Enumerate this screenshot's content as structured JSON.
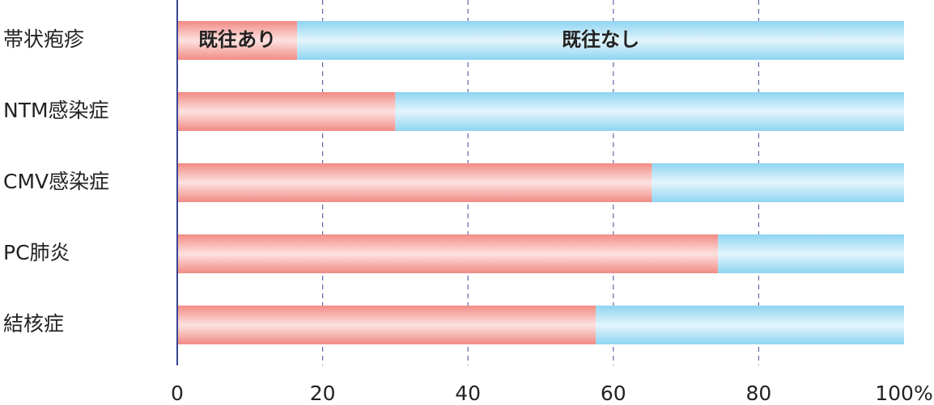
{
  "chart_data": {
    "type": "stacked_barh",
    "categories": [
      "帯状疱疹",
      "NTM感染症",
      "CMV感染症",
      "PC肺炎",
      "結核症"
    ],
    "series": [
      {
        "name": "既往あり",
        "color": "#f28b84",
        "values": [
          16.5,
          30.0,
          65.3,
          74.4,
          57.6
        ]
      },
      {
        "name": "既往なし",
        "color": "#8fd5f2",
        "values": [
          83.5,
          70.0,
          34.7,
          25.6,
          42.4
        ]
      }
    ],
    "xlim": [
      0,
      100
    ],
    "xticks": [
      0,
      20,
      40,
      60,
      80,
      {
        "value": 100,
        "label": "100%"
      }
    ],
    "grid": true
  }
}
